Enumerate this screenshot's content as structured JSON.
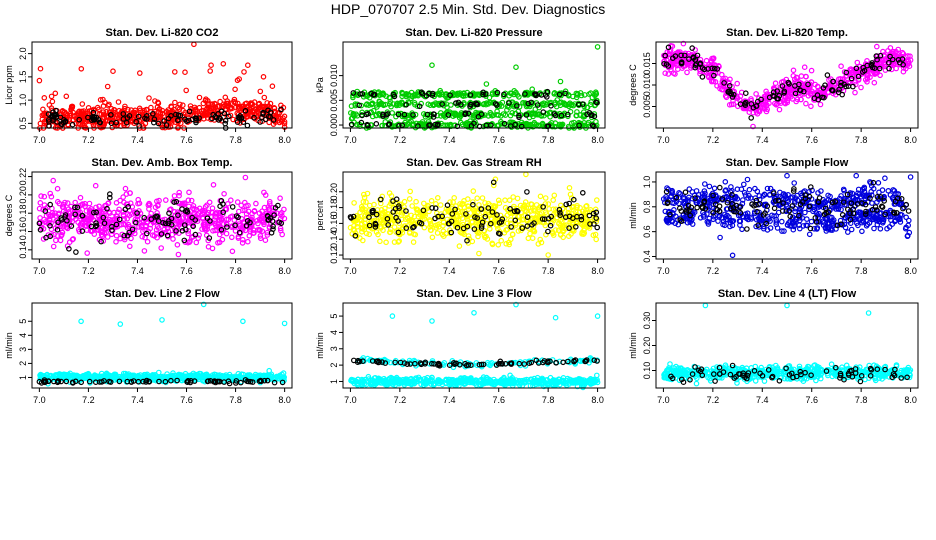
{
  "figure": {
    "title": "HDP_070707  2.5 Min. Std. Dev. Diagnostics"
  },
  "chart_data": [
    {
      "id": "p1",
      "type": "scatter",
      "title": "Stan. Dev. Li-820 CO2",
      "ylabel": "Licor ppm",
      "xlabel": "",
      "xlim": [
        6.97,
        8.03
      ],
      "ylim": [
        0.4,
        2.25
      ],
      "xticks": [
        7.0,
        7.2,
        7.4,
        7.6,
        7.8,
        8.0
      ],
      "xtick_labels": [
        "7.0",
        "7.2",
        "7.4",
        "7.6",
        "7.8",
        "8.0"
      ],
      "yticks": [
        0.5,
        1.0,
        1.5,
        2.0
      ],
      "ytick_labels": [
        "0.5",
        "1.0",
        "1.5",
        "2.0"
      ],
      "series": [
        {
          "name": "main",
          "color": "#ff0000",
          "n": 600,
          "base": [
            [
              7.0,
              0.62
            ],
            [
              7.6,
              0.65
            ],
            [
              7.7,
              0.82
            ],
            [
              7.9,
              0.78
            ],
            [
              8.0,
              0.6
            ]
          ],
          "spread": 0.13,
          "out_p": 0.04,
          "out_lo": 0.9,
          "out_hi": 1.7,
          "extra": [
            [
              7.0,
              1.42
            ],
            [
              7.02,
              1.05
            ],
            [
              7.05,
              1.08
            ],
            [
              7.63,
              2.2
            ],
            [
              7.7,
              1.75
            ],
            [
              7.75,
              1.78
            ],
            [
              7.85,
              1.75
            ],
            [
              7.95,
              1.3
            ],
            [
              8.0,
              0.42
            ]
          ]
        },
        {
          "name": "overlay",
          "color": "#000000",
          "n": 110,
          "base": [
            [
              7.0,
              0.6
            ],
            [
              8.0,
              0.62
            ]
          ],
          "spread": 0.08
        }
      ]
    },
    {
      "id": "p2",
      "type": "scatter",
      "title": "Stan. Dev. Li-820 Pressure",
      "ylabel": "kPa",
      "xlabel": "",
      "xlim": [
        6.97,
        8.03
      ],
      "ylim": [
        -0.0006,
        0.0168
      ],
      "xticks": [
        7.0,
        7.2,
        7.4,
        7.6,
        7.8,
        8.0
      ],
      "xtick_labels": [
        "7.0",
        "7.2",
        "7.4",
        "7.6",
        "7.8",
        "8.0"
      ],
      "yticks": [
        0.0,
        0.005,
        0.01
      ],
      "ytick_labels": [
        "0.000",
        "0.005",
        "0.010"
      ],
      "series": [
        {
          "name": "main",
          "color": "#00cc00",
          "n": 700,
          "levels": [
            0.0,
            0.0021,
            0.0042,
            0.0062
          ],
          "level_jitter": 0.0003,
          "extra": [
            [
              7.33,
              0.0121
            ],
            [
              7.67,
              0.0117
            ],
            [
              8.0,
              0.0158
            ],
            [
              7.85,
              0.0088
            ],
            [
              7.55,
              0.0083
            ]
          ]
        },
        {
          "name": "overlay",
          "color": "#000000",
          "n": 120,
          "levels": [
            0.0,
            0.0021,
            0.0042,
            0.0062
          ],
          "level_jitter": 0.0002
        }
      ]
    },
    {
      "id": "p3",
      "type": "scatter",
      "title": "Stan. Dev. Li-820 Temp.",
      "ylabel": "degrees C",
      "xlabel": "",
      "xlim": [
        6.97,
        8.03
      ],
      "ylim": [
        0.0,
        0.02
      ],
      "xticks": [
        7.0,
        7.2,
        7.4,
        7.6,
        7.8,
        8.0
      ],
      "xtick_labels": [
        "7.0",
        "7.2",
        "7.4",
        "7.6",
        "7.8",
        "8.0"
      ],
      "yticks": [
        0.005,
        0.01,
        0.015
      ],
      "ytick_labels": [
        "0.005",
        "0.010",
        "0.015"
      ],
      "series": [
        {
          "name": "main",
          "color": "#ff00ff",
          "n": 620,
          "base": [
            [
              7.0,
              0.0155
            ],
            [
              7.1,
              0.016
            ],
            [
              7.2,
              0.0135
            ],
            [
              7.3,
              0.0065
            ],
            [
              7.38,
              0.0045
            ],
            [
              7.45,
              0.0075
            ],
            [
              7.55,
              0.0095
            ],
            [
              7.65,
              0.0085
            ],
            [
              7.75,
              0.0115
            ],
            [
              7.9,
              0.016
            ],
            [
              8.0,
              0.016
            ]
          ],
          "spread": 0.0014
        },
        {
          "name": "overlay",
          "color": "#000000",
          "n": 120,
          "base": [
            [
              7.0,
              0.0155
            ],
            [
              7.1,
              0.016
            ],
            [
              7.2,
              0.0135
            ],
            [
              7.3,
              0.0065
            ],
            [
              7.38,
              0.0045
            ],
            [
              7.45,
              0.0075
            ],
            [
              7.55,
              0.0095
            ],
            [
              7.65,
              0.0085
            ],
            [
              7.75,
              0.0115
            ],
            [
              7.9,
              0.016
            ],
            [
              8.0,
              0.016
            ]
          ],
          "spread": 0.0012
        }
      ]
    },
    {
      "id": "p4",
      "type": "scatter",
      "title": "Stan. Dev. Amb. Box Temp.",
      "ylabel": "degrees C",
      "xlabel": "",
      "xlim": [
        6.97,
        8.03
      ],
      "ylim": [
        0.13,
        0.225
      ],
      "xticks": [
        7.0,
        7.2,
        7.4,
        7.6,
        7.8,
        8.0
      ],
      "xtick_labels": [
        "7.0",
        "7.2",
        "7.4",
        "7.6",
        "7.8",
        "8.0"
      ],
      "yticks": [
        0.14,
        0.16,
        0.18,
        0.2,
        0.22
      ],
      "ytick_labels": [
        "0.14",
        "0.16",
        "0.18",
        "0.20",
        "0.22"
      ],
      "series": [
        {
          "name": "main",
          "color": "#ff00ff",
          "n": 650,
          "base": [
            [
              7.0,
              0.172
            ],
            [
              8.0,
              0.172
            ]
          ],
          "spread": 0.013,
          "extra": [
            [
              7.84,
              0.219
            ],
            [
              7.71,
              0.211
            ],
            [
              7.02,
              0.198
            ],
            [
              7.37,
              0.202
            ]
          ]
        },
        {
          "name": "overlay",
          "color": "#000000",
          "n": 110,
          "base": [
            [
              7.0,
              0.17
            ],
            [
              8.0,
              0.17
            ]
          ],
          "spread": 0.011
        }
      ]
    },
    {
      "id": "p5",
      "type": "scatter",
      "title": "Stan. Dev. Gas Stream RH",
      "ylabel": "percent",
      "xlabel": "",
      "xlim": [
        6.97,
        8.03
      ],
      "ylim": [
        0.115,
        0.225
      ],
      "xticks": [
        7.0,
        7.2,
        7.4,
        7.6,
        7.8,
        8.0
      ],
      "xtick_labels": [
        "7.0",
        "7.2",
        "7.4",
        "7.6",
        "7.8",
        "8.0"
      ],
      "yticks": [
        0.12,
        0.14,
        0.16,
        0.18,
        0.2
      ],
      "ytick_labels": [
        "0.12",
        "0.14",
        "0.16",
        "0.18",
        "0.20"
      ],
      "series": [
        {
          "name": "main",
          "color": "#ffff00",
          "n": 650,
          "base": [
            [
              7.0,
              0.165
            ],
            [
              8.0,
              0.165
            ]
          ],
          "spread": 0.013,
          "extra": [
            [
              7.71,
              0.222
            ],
            [
              7.58,
              0.208
            ],
            [
              7.52,
              0.122
            ],
            [
              7.8,
              0.12
            ]
          ]
        },
        {
          "name": "overlay",
          "color": "#000000",
          "n": 110,
          "base": [
            [
              7.0,
              0.167
            ],
            [
              8.0,
              0.167
            ]
          ],
          "spread": 0.012
        }
      ]
    },
    {
      "id": "p6",
      "type": "scatter",
      "title": "Stan. Dev. Sample Flow",
      "ylabel": "ml/min",
      "xlabel": "",
      "xlim": [
        6.97,
        8.03
      ],
      "ylim": [
        0.38,
        1.08
      ],
      "xticks": [
        7.0,
        7.2,
        7.4,
        7.6,
        7.8,
        8.0
      ],
      "xtick_labels": [
        "7.0",
        "7.2",
        "7.4",
        "7.6",
        "7.8",
        "8.0"
      ],
      "yticks": [
        0.4,
        0.6,
        0.8,
        1.0
      ],
      "ytick_labels": [
        "0.4",
        "0.6",
        "0.8",
        "1.0"
      ],
      "series": [
        {
          "name": "band-high",
          "color": "#0000dd",
          "n": 330,
          "base": [
            [
              7.0,
              0.85
            ],
            [
              7.3,
              0.88
            ],
            [
              7.7,
              0.82
            ],
            [
              7.85,
              0.92
            ],
            [
              8.0,
              0.85
            ]
          ],
          "spread": 0.045
        },
        {
          "name": "band-low",
          "color": "#0000dd",
          "n": 330,
          "base": [
            [
              7.0,
              0.72
            ],
            [
              7.3,
              0.7
            ],
            [
              7.7,
              0.68
            ],
            [
              7.85,
              0.72
            ],
            [
              8.0,
              0.66
            ]
          ],
          "spread": 0.045,
          "extra": [
            [
              7.28,
              0.41
            ],
            [
              7.34,
              1.02
            ],
            [
              7.5,
              1.05
            ],
            [
              7.78,
              1.05
            ],
            [
              8.0,
              1.04
            ]
          ]
        },
        {
          "name": "overlay",
          "color": "#000000",
          "n": 120,
          "base": [
            [
              7.0,
              0.82
            ],
            [
              8.0,
              0.8
            ]
          ],
          "spread": 0.07
        }
      ]
    },
    {
      "id": "p7",
      "type": "scatter",
      "title": "Stan. Dev. Line 2 Flow",
      "ylabel": "ml/min",
      "xlabel": "",
      "xlim": [
        6.97,
        8.03
      ],
      "ylim": [
        0.25,
        6.3
      ],
      "xticks": [
        7.0,
        7.2,
        7.4,
        7.6,
        7.8,
        8.0
      ],
      "xtick_labels": [
        "7.0",
        "7.2",
        "7.4",
        "7.6",
        "7.8",
        "8.0"
      ],
      "yticks": [
        1,
        2,
        3,
        4,
        5
      ],
      "ytick_labels": [
        "1",
        "2",
        "3",
        "4",
        "5"
      ],
      "series": [
        {
          "name": "main",
          "color": "#00ffff",
          "n": 650,
          "base": [
            [
              7.0,
              1.0
            ],
            [
              8.0,
              1.0
            ]
          ],
          "spread": 0.13,
          "extra": [
            [
              7.17,
              5.0
            ],
            [
              7.33,
              4.8
            ],
            [
              7.5,
              5.1
            ],
            [
              7.67,
              6.2
            ],
            [
              7.83,
              5.0
            ],
            [
              8.0,
              4.85
            ]
          ]
        },
        {
          "name": "overlay",
          "color": "#000000",
          "n": 75,
          "base": [
            [
              7.0,
              0.7
            ],
            [
              8.0,
              0.7
            ]
          ],
          "spread": 0.05
        }
      ]
    },
    {
      "id": "p8",
      "type": "scatter",
      "title": "Stan. Dev. Line 3 Flow",
      "ylabel": "ml/min",
      "xlabel": "",
      "xlim": [
        6.97,
        8.03
      ],
      "ylim": [
        0.6,
        5.8
      ],
      "xticks": [
        7.0,
        7.2,
        7.4,
        7.6,
        7.8,
        8.0
      ],
      "xtick_labels": [
        "7.0",
        "7.2",
        "7.4",
        "7.6",
        "7.8",
        "8.0"
      ],
      "yticks": [
        1,
        2,
        3,
        4,
        5
      ],
      "ytick_labels": [
        "1",
        "2",
        "3",
        "4",
        "5"
      ],
      "series": [
        {
          "name": "upper",
          "color": "#00ffff",
          "n": 120,
          "base": [
            [
              7.0,
              2.3
            ],
            [
              7.2,
              2.2
            ],
            [
              7.5,
              2.0
            ],
            [
              7.8,
              2.2
            ],
            [
              8.0,
              2.3
            ]
          ],
          "spread": 0.08
        },
        {
          "name": "main",
          "color": "#00ffff",
          "n": 520,
          "base": [
            [
              7.0,
              1.0
            ],
            [
              8.0,
              1.0
            ]
          ],
          "spread": 0.12,
          "extra": [
            [
              7.17,
              5.0
            ],
            [
              7.33,
              4.7
            ],
            [
              7.5,
              5.2
            ],
            [
              7.67,
              5.7
            ],
            [
              7.83,
              4.9
            ],
            [
              8.0,
              5.0
            ]
          ]
        },
        {
          "name": "overlay",
          "color": "#000000",
          "n": 75,
          "base": [
            [
              7.0,
              2.25
            ],
            [
              7.2,
              2.15
            ],
            [
              7.5,
              2.0
            ],
            [
              7.8,
              2.15
            ],
            [
              8.0,
              2.3
            ]
          ],
          "spread": 0.05
        }
      ]
    },
    {
      "id": "p9",
      "type": "scatter",
      "title": "Stan. Dev. Line 4 (LT) Flow",
      "ylabel": "ml/min",
      "xlabel": "",
      "xlim": [
        6.97,
        8.03
      ],
      "ylim": [
        0.03,
        0.37
      ],
      "xticks": [
        7.0,
        7.2,
        7.4,
        7.6,
        7.8,
        8.0
      ],
      "xtick_labels": [
        "7.0",
        "7.2",
        "7.4",
        "7.6",
        "7.8",
        "8.0"
      ],
      "yticks": [
        0.1,
        0.2,
        0.3
      ],
      "ytick_labels": [
        "0.10",
        "0.20",
        "0.30"
      ],
      "series": [
        {
          "name": "main",
          "color": "#00ffff",
          "n": 600,
          "base": [
            [
              7.0,
              0.09
            ],
            [
              8.0,
              0.09
            ]
          ],
          "spread": 0.013,
          "extra": [
            [
              7.17,
              0.36
            ],
            [
              7.5,
              0.36
            ],
            [
              7.83,
              0.33
            ]
          ]
        },
        {
          "name": "overlay",
          "color": "#000000",
          "n": 70,
          "base": [
            [
              7.0,
              0.085
            ],
            [
              8.0,
              0.085
            ]
          ],
          "spread": 0.012,
          "extra": [
            [
              7.28,
              0.12
            ]
          ]
        }
      ]
    }
  ]
}
